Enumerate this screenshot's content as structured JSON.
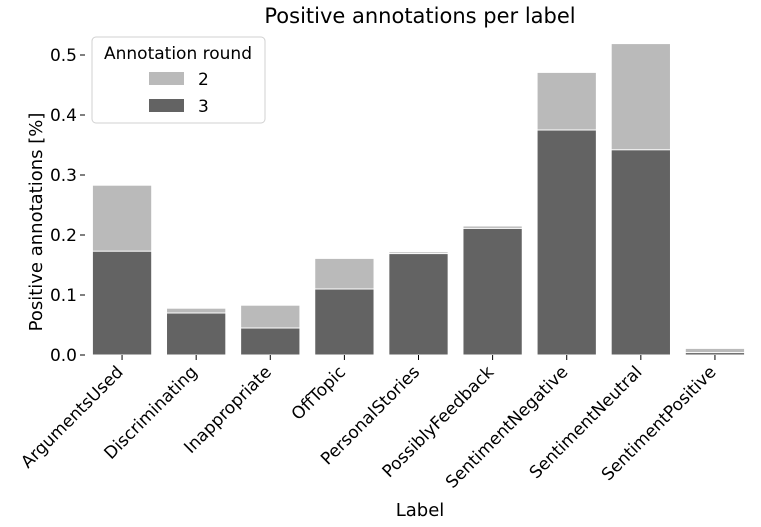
{
  "chart_data": {
    "type": "bar",
    "stacked": "overlay",
    "title": "Positive annotations per label",
    "xlabel": "Label",
    "ylabel": "Positive annotations [%]",
    "ylim": [
      0,
      0.52
    ],
    "yticks": [
      "0.0",
      "0.1",
      "0.2",
      "0.3",
      "0.4",
      "0.5"
    ],
    "grid": false,
    "legend_position": "top-left",
    "legend_title": "Annotation round",
    "categories": [
      "ArgumentsUsed",
      "Discriminating",
      "Inappropriate",
      "OffTopic",
      "PersonalStories",
      "PossiblyFeedback",
      "SentimentNegative",
      "SentimentNeutral",
      "SentimentPositive"
    ],
    "series": [
      {
        "name": "2",
        "color": "#bababa",
        "values": [
          0.283,
          0.078,
          0.083,
          0.161,
          0.172,
          0.215,
          0.471,
          0.519,
          0.011
        ]
      },
      {
        "name": "3",
        "color": "#636363",
        "values": [
          0.173,
          0.07,
          0.045,
          0.11,
          0.169,
          0.211,
          0.375,
          0.342,
          0.004
        ]
      }
    ]
  }
}
